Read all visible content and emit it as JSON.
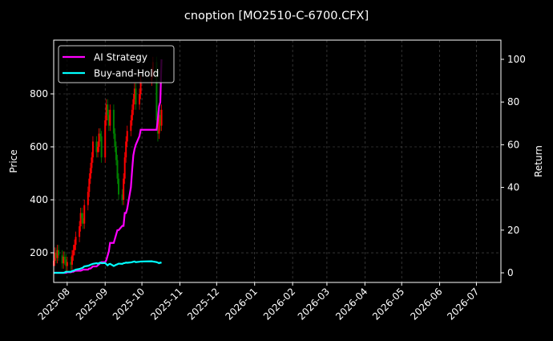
{
  "chart_data": {
    "type": "candlestick+line",
    "title": "cnoption [MO2510-C-6700.CFX]",
    "ylabel": "Price",
    "y2label": "Return",
    "xlim": [
      "2025-07-21",
      "2026-07-21"
    ],
    "ylim": [
      88,
      1003
    ],
    "y2lim": [
      -4.5,
      109
    ],
    "grid": true,
    "legend_placement": "top-left",
    "x_ticks": [
      "2025-08",
      "2025-09",
      "2025-10",
      "2025-11",
      "2025-12",
      "2026-01",
      "2026-02",
      "2026-03",
      "2026-04",
      "2026-05",
      "2026-06",
      "2026-07"
    ],
    "y_ticks": [
      200,
      400,
      600,
      800
    ],
    "y2_ticks": [
      0,
      20,
      40,
      60,
      80,
      100
    ],
    "dates": [
      "2025-07-21",
      "2025-07-22",
      "2025-07-23",
      "2025-07-24",
      "2025-07-25",
      "2025-07-28",
      "2025-07-29",
      "2025-07-30",
      "2025-07-31",
      "2025-08-01",
      "2025-08-04",
      "2025-08-05",
      "2025-08-06",
      "2025-08-07",
      "2025-08-08",
      "2025-08-11",
      "2025-08-12",
      "2025-08-13",
      "2025-08-14",
      "2025-08-15",
      "2025-08-18",
      "2025-08-19",
      "2025-08-20",
      "2025-08-21",
      "2025-08-22",
      "2025-08-25",
      "2025-08-26",
      "2025-08-27",
      "2025-08-28",
      "2025-08-29",
      "2025-09-01",
      "2025-09-02",
      "2025-09-03",
      "2025-09-04",
      "2025-09-05",
      "2025-09-08",
      "2025-09-09",
      "2025-09-10",
      "2025-09-11",
      "2025-09-12",
      "2025-09-15",
      "2025-09-16",
      "2025-09-17",
      "2025-09-18",
      "2025-09-19",
      "2025-09-22",
      "2025-09-23",
      "2025-09-24",
      "2025-09-25",
      "2025-09-26",
      "2025-09-29",
      "2025-09-30",
      "2025-10-09",
      "2025-10-10",
      "2025-10-13",
      "2025-10-14",
      "2025-10-15",
      "2025-10-16",
      "2025-10-17"
    ],
    "ohlc": [
      [
        150,
        190,
        130,
        170
      ],
      [
        170,
        220,
        150,
        200
      ],
      [
        200,
        220,
        160,
        180
      ],
      [
        180,
        230,
        160,
        210
      ],
      [
        210,
        230,
        170,
        190
      ],
      [
        190,
        210,
        140,
        160
      ],
      [
        160,
        205,
        140,
        185
      ],
      [
        185,
        205,
        155,
        175
      ],
      [
        175,
        195,
        130,
        150
      ],
      [
        150,
        185,
        130,
        165
      ],
      [
        165,
        185,
        135,
        155
      ],
      [
        155,
        210,
        135,
        190
      ],
      [
        190,
        230,
        170,
        210
      ],
      [
        210,
        250,
        190,
        230
      ],
      [
        230,
        280,
        210,
        260
      ],
      [
        260,
        320,
        240,
        300
      ],
      [
        300,
        370,
        280,
        350
      ],
      [
        350,
        370,
        310,
        330
      ],
      [
        330,
        350,
        290,
        310
      ],
      [
        310,
        400,
        290,
        380
      ],
      [
        380,
        450,
        360,
        430
      ],
      [
        430,
        500,
        410,
        480
      ],
      [
        480,
        540,
        460,
        520
      ],
      [
        520,
        580,
        500,
        560
      ],
      [
        560,
        640,
        540,
        620
      ],
      [
        620,
        640,
        560,
        580
      ],
      [
        580,
        620,
        560,
        600
      ],
      [
        600,
        670,
        580,
        650
      ],
      [
        650,
        670,
        620,
        640
      ],
      [
        640,
        660,
        540,
        560
      ],
      [
        560,
        720,
        540,
        700
      ],
      [
        700,
        780,
        680,
        760
      ],
      [
        760,
        780,
        700,
        720
      ],
      [
        720,
        740,
        660,
        680
      ],
      [
        680,
        760,
        660,
        740
      ],
      [
        740,
        760,
        630,
        650
      ],
      [
        650,
        670,
        580,
        600
      ],
      [
        600,
        620,
        530,
        550
      ],
      [
        550,
        570,
        460,
        480
      ],
      [
        480,
        500,
        400,
        420
      ],
      [
        420,
        440,
        380,
        400
      ],
      [
        400,
        500,
        380,
        480
      ],
      [
        480,
        580,
        460,
        560
      ],
      [
        560,
        640,
        540,
        620
      ],
      [
        620,
        680,
        600,
        660
      ],
      [
        660,
        720,
        640,
        700
      ],
      [
        700,
        760,
        680,
        740
      ],
      [
        740,
        800,
        720,
        780
      ],
      [
        780,
        840,
        760,
        820
      ],
      [
        820,
        840,
        740,
        760
      ],
      [
        760,
        820,
        740,
        800
      ],
      [
        800,
        870,
        780,
        850
      ],
      [
        850,
        900,
        830,
        880
      ],
      [
        880,
        940,
        860,
        920
      ],
      [
        920,
        940,
        680,
        700
      ],
      [
        700,
        720,
        620,
        650
      ],
      [
        650,
        740,
        630,
        720
      ],
      [
        720,
        740,
        660,
        680
      ],
      [
        680,
        760,
        660,
        740
      ]
    ],
    "series": [
      {
        "name": "AI Strategy",
        "color": "#ff00ff",
        "values": [
          0,
          0,
          0,
          0,
          0,
          0,
          0,
          0,
          0,
          0.3,
          0.3,
          0.5,
          0.5,
          0.8,
          1,
          1,
          1,
          1.2,
          1.5,
          1.5,
          1.5,
          2,
          2,
          2.5,
          3,
          3,
          3.5,
          4,
          4.5,
          5,
          5,
          6,
          8,
          10,
          14,
          14,
          16,
          18,
          20,
          20,
          22,
          22,
          28,
          28,
          30,
          40,
          48,
          55,
          58,
          60,
          64,
          67,
          67,
          67,
          67,
          72,
          78,
          80,
          100
        ]
      },
      {
        "name": "Buy-and-Hold",
        "color": "#00ffff",
        "values": [
          0,
          0,
          0,
          0,
          0,
          0,
          0,
          0.2,
          0.5,
          0.5,
          0.5,
          0.8,
          1,
          1.2,
          1.5,
          1.8,
          2,
          2.2,
          2.5,
          3,
          3.3,
          3.5,
          3.8,
          4,
          4.2,
          4.5,
          4.3,
          4.5,
          4.8,
          4.5,
          4.6,
          4,
          3.5,
          4,
          4.2,
          3.2,
          3.5,
          3.8,
          4,
          4.3,
          4.2,
          4.5,
          4.6,
          4.8,
          4.7,
          4.9,
          5,
          5.2,
          5.3,
          5,
          5.2,
          5.3,
          5.4,
          5.3,
          5,
          4.8,
          4.5,
          4.8,
          4.6
        ]
      }
    ],
    "candle_colors": {
      "up": "#ff0000",
      "down": "#008000"
    }
  }
}
